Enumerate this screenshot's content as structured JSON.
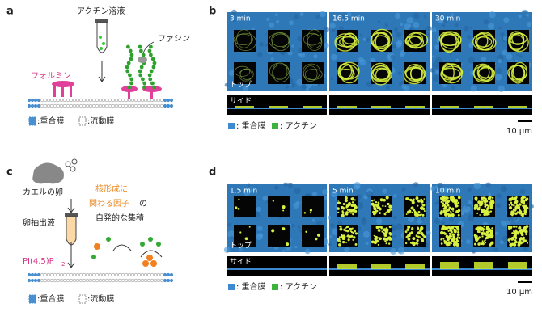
{
  "panel_a": {
    "label": "a",
    "solution": "アクチン溶液",
    "fascin": "ファシン",
    "formin": "フォルミン",
    "legend": [
      ":重合膜",
      ":流動膜"
    ]
  },
  "panel_b": {
    "label": "b",
    "times": [
      "3 min",
      "16.5 min",
      "30 min"
    ],
    "top": "トップ",
    "side": "サイド",
    "legend": [
      ": 重合膜",
      ": アクチン"
    ],
    "scale": "10 μm"
  },
  "panel_c": {
    "label": "c",
    "egg": "カエルの卵",
    "extract": "卵抽出液",
    "factor_lines": [
      "核形成に",
      "関わる因子"
    ],
    "factor_suffix": "の",
    "factor_tail": "自発的な集積",
    "lipid": "PI(4,5)P",
    "lipid_sub": "2",
    "legend": [
      ":重合膜",
      ":流動膜"
    ]
  },
  "panel_d": {
    "label": "d",
    "times": [
      "1.5 min",
      "5 min",
      "10 min"
    ],
    "top": "トップ",
    "side": "サイド",
    "legend": [
      ": 重合膜",
      ": アクチン"
    ],
    "scale": "10 μm"
  }
}
